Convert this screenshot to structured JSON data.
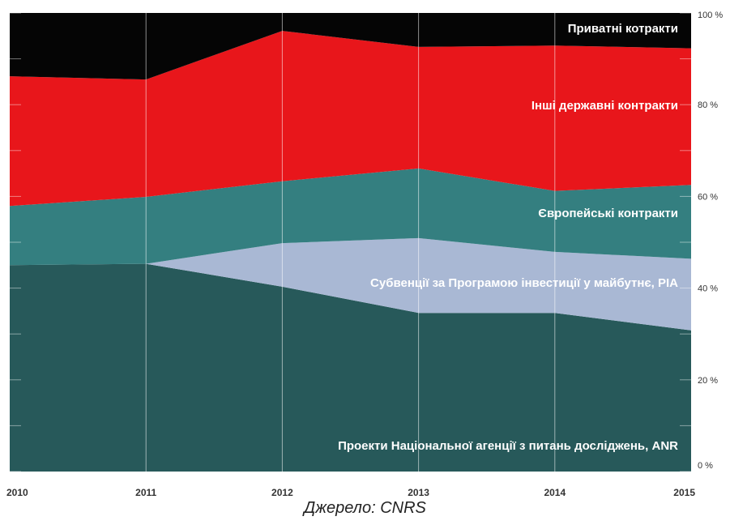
{
  "chart_data": {
    "type": "area",
    "stacked": true,
    "x": [
      2010,
      2011,
      2012,
      2013,
      2014,
      2015
    ],
    "x_tick_labels": [
      "2010",
      "2011",
      "2012",
      "2013",
      "2014",
      "2015"
    ],
    "ylim": [
      0,
      100
    ],
    "y_ticks": [
      0,
      20,
      40,
      60,
      80,
      100
    ],
    "y_tick_labels": [
      "0 %",
      "20 %",
      "40 %",
      "60 %",
      "80 %",
      "100 %"
    ],
    "grid": "vertical",
    "series": [
      {
        "name": "Проекти Національної агенції з питань досліджень, ANR",
        "values": [
          45.0,
          45.3,
          40.3,
          34.6,
          34.6,
          30.8
        ],
        "color": "#27595a"
      },
      {
        "name": "Субвенції за Програмою інвестиції у майбутнє, PIA",
        "values": [
          0.0,
          0.0,
          9.5,
          16.3,
          13.3,
          15.6
        ],
        "color": "#a9b8d4"
      },
      {
        "name": "Європейські контракти",
        "values": [
          12.9,
          14.6,
          13.5,
          15.2,
          13.3,
          16.1
        ],
        "color": "#347f80"
      },
      {
        "name": "Інші державні контракти",
        "values": [
          28.3,
          25.6,
          32.8,
          26.5,
          31.7,
          29.8
        ],
        "color": "#e8161b"
      },
      {
        "name": "Приватні котракти",
        "values": [
          13.8,
          14.5,
          3.9,
          7.4,
          7.1,
          7.7
        ],
        "color": "#050505"
      }
    ]
  },
  "source_text": "Джерело: CNRS"
}
